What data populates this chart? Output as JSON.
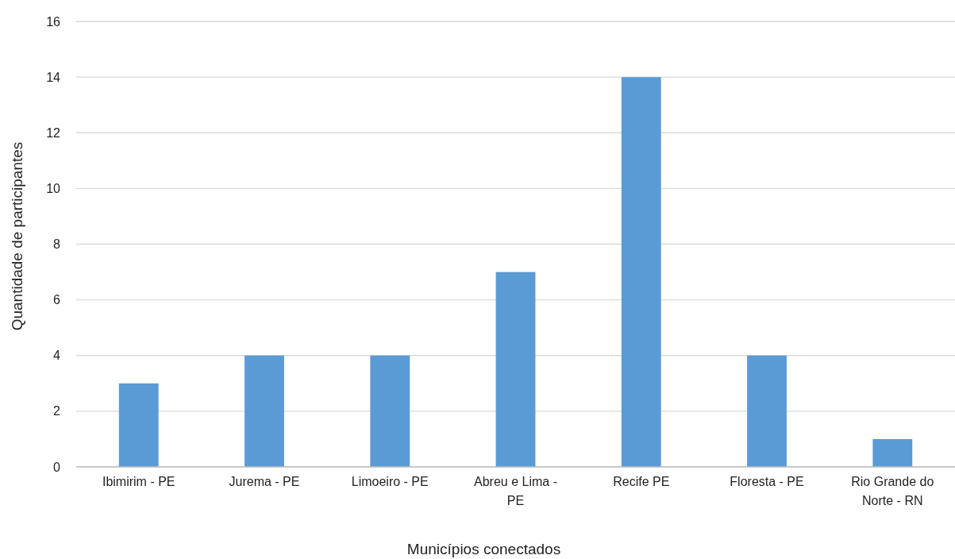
{
  "chart_data": {
    "type": "bar",
    "xlabel": "Municípios conectados",
    "ylabel": "Quantidade de participantes",
    "categories": [
      "Ibimirim - PE",
      "Jurema - PE",
      "Limoeiro - PE",
      "Abreu e Lima - PE",
      "Recife PE",
      "Floresta - PE",
      "Rio Grande do Norte - RN"
    ],
    "values": [
      3,
      4,
      4,
      7,
      14,
      4,
      1
    ],
    "color": "#5b9bd5",
    "ylim": [
      0,
      16
    ],
    "yticks": [
      0,
      2,
      4,
      6,
      8,
      10,
      12,
      14,
      16
    ],
    "grid": "y"
  }
}
